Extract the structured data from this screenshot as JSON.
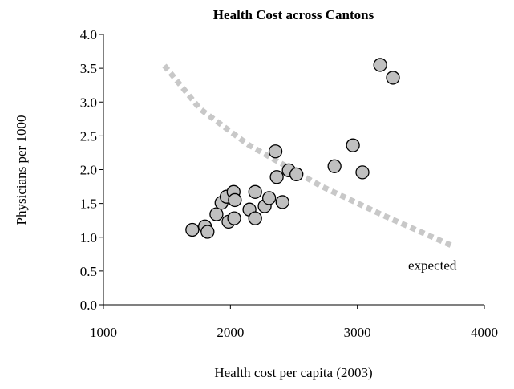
{
  "chart_data": {
    "type": "scatter",
    "title": "Health Cost across Cantons",
    "x_label": "Health cost per capita (2003)",
    "y_label": "Physicians per 1000",
    "xlim": [
      1000,
      4000
    ],
    "ylim": [
      0,
      4
    ],
    "xticks": [
      1000,
      2000,
      3000,
      4000
    ],
    "yticks": [
      {
        "value": 0,
        "label": "0.0"
      },
      0.5,
      {
        "value": 1,
        "label": "1.0"
      },
      1.5,
      {
        "value": 2,
        "label": "2.0"
      },
      2.5,
      {
        "value": 3,
        "label": "3.0"
      },
      3.5,
      {
        "value": 4,
        "label": "4.0"
      }
    ],
    "color": "#c0c0c0",
    "x": [
      1700,
      1800,
      1820,
      1890,
      1930,
      1970,
      1985,
      2025,
      2035,
      2030,
      2150,
      2195,
      2195,
      2270,
      2305,
      2355,
      2365,
      2410,
      2460,
      2520,
      2820,
      2965,
      3040,
      3180,
      3280
    ],
    "values": [
      1.11,
      1.16,
      1.08,
      1.34,
      1.51,
      1.6,
      1.23,
      1.67,
      1.55,
      1.28,
      1.41,
      1.67,
      1.28,
      1.46,
      1.58,
      2.27,
      1.89,
      1.52,
      1.99,
      1.93,
      2.05,
      2.36,
      1.96,
      3.55,
      3.36
    ],
    "lines": [
      {
        "name": "expected",
        "color": "#c8c8c8",
        "x": [
          1480,
          1760,
          2140,
          2710,
          3220,
          3750
        ],
        "values": [
          3.54,
          2.9,
          2.37,
          1.76,
          1.31,
          0.87
        ]
      }
    ]
  }
}
